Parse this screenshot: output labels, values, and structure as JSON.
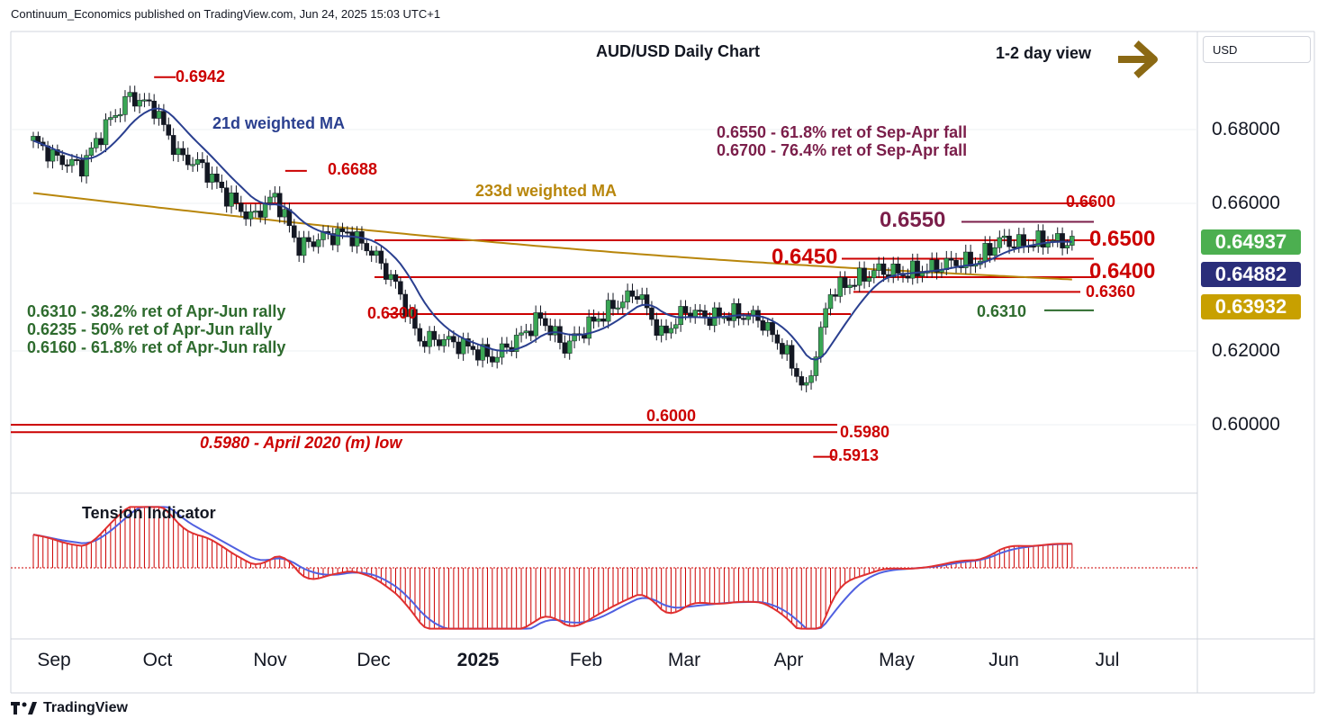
{
  "header": {
    "publisher": "Continuum_Economics published on TradingView.com, Jun 24, 2025 15:03 UTC+1"
  },
  "chart_data": {
    "type": "candlestick",
    "title": "AUD/USD Daily Chart",
    "view": "1-2 day view",
    "currency": "USD",
    "y_ticks": [
      "0.68000",
      "0.66000",
      "0.62000",
      "0.60000"
    ],
    "x_ticks": [
      "Sep",
      "Oct",
      "Nov",
      "Dec",
      "2025",
      "Feb",
      "Mar",
      "Apr",
      "May",
      "Jun",
      "Jul"
    ],
    "price_badges": [
      {
        "value": "0.64937",
        "color": "#4caf50"
      },
      {
        "value": "0.64882",
        "color": "#2a2e7a"
      },
      {
        "value": "0.63932",
        "color": "#c8a000"
      }
    ],
    "ma_labels": {
      "wma21": "21d weighted MA",
      "wma233": "233d weighted MA"
    },
    "levels": [
      {
        "label": "0.6600",
        "value": 0.66
      },
      {
        "label": "0.6550",
        "value": 0.655
      },
      {
        "label": "0.6500",
        "value": 0.65
      },
      {
        "label": "0.6450",
        "value": 0.645
      },
      {
        "label": "0.6400",
        "value": 0.64
      },
      {
        "label": "0.6360",
        "value": 0.636
      },
      {
        "label": "0.6310",
        "value": 0.631
      },
      {
        "label": "0.6300",
        "value": 0.63
      },
      {
        "label": "0.6000",
        "value": 0.6
      },
      {
        "label": "0.5980",
        "value": 0.598
      }
    ],
    "point_labels": [
      {
        "label": "0.6942",
        "value": 0.6942,
        "date": "2024-09-30"
      },
      {
        "label": "0.6688",
        "value": 0.6688,
        "date": "2024-11-07"
      },
      {
        "label": "0.5913",
        "value": 0.5913,
        "date": "2025-04-09"
      }
    ],
    "notes": {
      "fib_top": [
        "0.6550 - 61.8% ret of Sep-Apr fall",
        "0.6700 - 76.4% ret of Sep-Apr fall"
      ],
      "fib_left": [
        "0.6310 - 38.2% ret of Apr-Jun rally",
        "0.6235 - 50% ret of Apr-Jun rally",
        "0.6160 - 61.8% ret of Apr-Jun rally"
      ],
      "april_low": "0.5980 - April 2020 (m) low"
    },
    "indicator": {
      "title": "Tension Indicator"
    },
    "close_series": [
      [
        "2024-08-26",
        0.677
      ],
      [
        "2024-09-02",
        0.672
      ],
      [
        "2024-09-09",
        0.67
      ],
      [
        "2024-09-16",
        0.681
      ],
      [
        "2024-09-23",
        0.689
      ],
      [
        "2024-09-30",
        0.686
      ],
      [
        "2024-10-07",
        0.673
      ],
      [
        "2024-10-14",
        0.67
      ],
      [
        "2024-10-21",
        0.662
      ],
      [
        "2024-10-28",
        0.656
      ],
      [
        "2024-11-04",
        0.662
      ],
      [
        "2024-11-11",
        0.648
      ],
      [
        "2024-11-18",
        0.651
      ],
      [
        "2024-11-25",
        0.652
      ],
      [
        "2024-12-02",
        0.647
      ],
      [
        "2024-12-09",
        0.638
      ],
      [
        "2024-12-16",
        0.623
      ],
      [
        "2024-12-23",
        0.623
      ],
      [
        "2024-12-30",
        0.621
      ],
      [
        "2025-01-06",
        0.618
      ],
      [
        "2025-01-13",
        0.623
      ],
      [
        "2025-01-20",
        0.629
      ],
      [
        "2025-01-27",
        0.621
      ],
      [
        "2025-02-03",
        0.627
      ],
      [
        "2025-02-10",
        0.632
      ],
      [
        "2025-02-17",
        0.636
      ],
      [
        "2025-02-24",
        0.624
      ],
      [
        "2025-03-03",
        0.631
      ],
      [
        "2025-03-10",
        0.629
      ],
      [
        "2025-03-17",
        0.63
      ],
      [
        "2025-03-24",
        0.629
      ],
      [
        "2025-03-31",
        0.621
      ],
      [
        "2025-04-07",
        0.609
      ],
      [
        "2025-04-14",
        0.636
      ],
      [
        "2025-04-21",
        0.639
      ],
      [
        "2025-04-28",
        0.642
      ],
      [
        "2025-05-05",
        0.641
      ],
      [
        "2025-05-12",
        0.642
      ],
      [
        "2025-05-19",
        0.644
      ],
      [
        "2025-05-26",
        0.644
      ],
      [
        "2025-06-02",
        0.65
      ],
      [
        "2025-06-09",
        0.649
      ],
      [
        "2025-06-16",
        0.65
      ],
      [
        "2025-06-23",
        0.6494
      ]
    ]
  }
}
